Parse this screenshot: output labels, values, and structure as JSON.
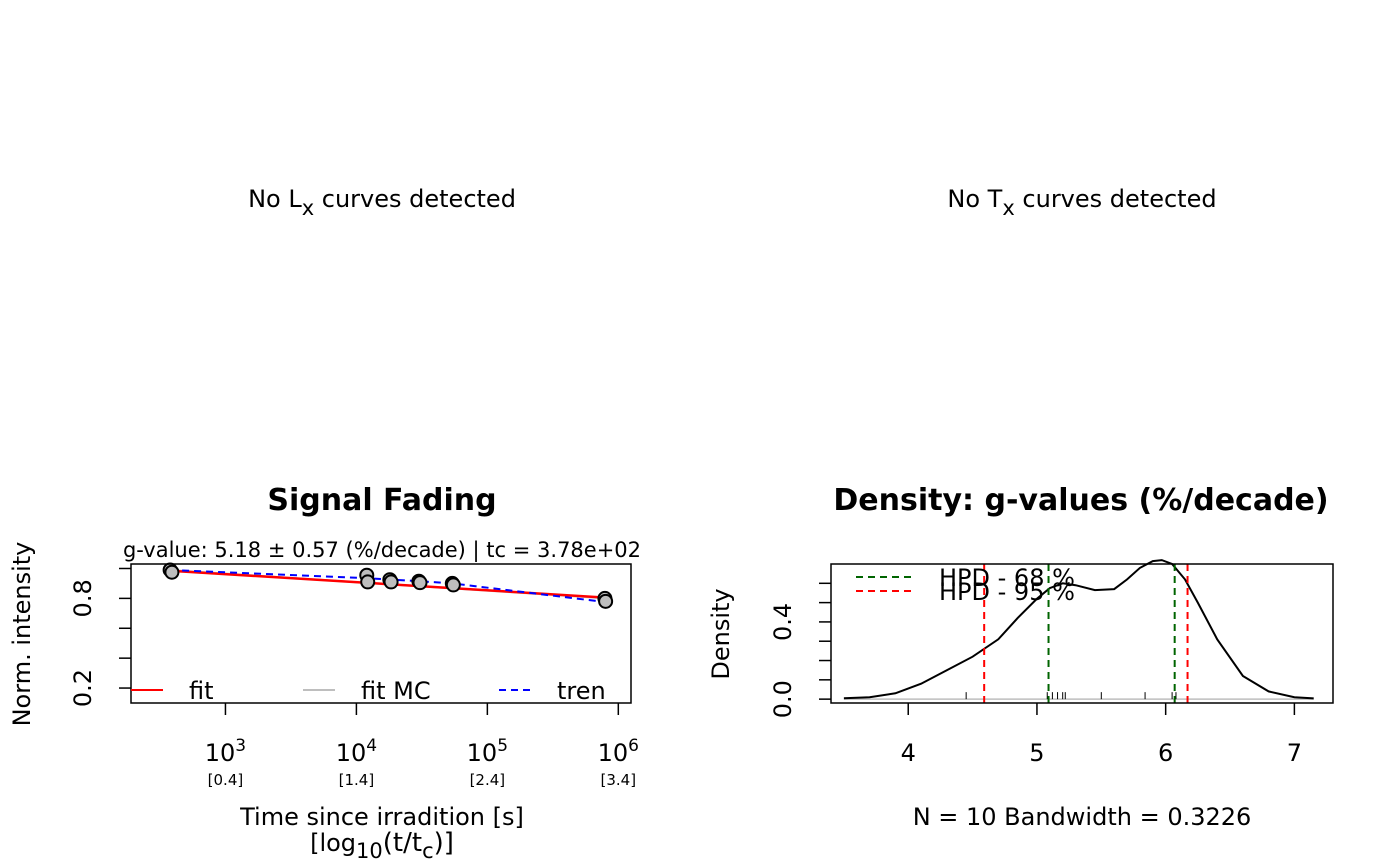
{
  "panels": {
    "lx_message": {
      "prefix": "No L",
      "sub": "x",
      "suffix": " curves detected"
    },
    "tx_message": {
      "prefix": "No T",
      "sub": "x",
      "suffix": " curves detected"
    }
  },
  "chart_data": [
    {
      "type": "scatter",
      "title": "Signal Fading",
      "subtitle": "g-value: 5.18 ± 0.57 (%/decade) | tc = 3.78e+02",
      "xlabel": "Time since irradition [s]",
      "xlabel2": {
        "open": "[log",
        "sub1": "10",
        "mid": "(t/t",
        "sub2": "c",
        "close": ")]"
      },
      "ylabel": "Norm. intensity",
      "x_scale": "log10",
      "xlim": [
        190,
        1250000
      ],
      "ylim": [
        0.1,
        1.03
      ],
      "x_ticks": [
        {
          "x": 1000,
          "base": "10",
          "exp": "3",
          "secondary": "[0.4]"
        },
        {
          "x": 10000,
          "base": "10",
          "exp": "4",
          "secondary": "[1.4]"
        },
        {
          "x": 100000,
          "base": "10",
          "exp": "5",
          "secondary": "[2.4]"
        },
        {
          "x": 1000000,
          "base": "10",
          "exp": "6",
          "secondary": "[3.4]"
        }
      ],
      "y_ticks": [
        0.2,
        0.8
      ],
      "y_minor_ticks": [
        0.2,
        0.4,
        0.6,
        0.8,
        1.0
      ],
      "points": [
        {
          "x": 378,
          "y": 0.99
        },
        {
          "x": 390,
          "y": 0.975
        },
        {
          "x": 12000,
          "y": 0.955
        },
        {
          "x": 12200,
          "y": 0.91
        },
        {
          "x": 18000,
          "y": 0.925
        },
        {
          "x": 18400,
          "y": 0.91
        },
        {
          "x": 30000,
          "y": 0.915
        },
        {
          "x": 30600,
          "y": 0.905
        },
        {
          "x": 54000,
          "y": 0.9
        },
        {
          "x": 55000,
          "y": 0.89
        },
        {
          "x": 790000,
          "y": 0.8
        },
        {
          "x": 800000,
          "y": 0.78
        }
      ],
      "series": [
        {
          "name": "fit",
          "color": "#ff0000",
          "style": "solid",
          "x": [
            378,
            800000
          ],
          "y": [
            0.985,
            0.805
          ]
        },
        {
          "name": "fit MC",
          "color": "#bebebe",
          "style": "solid",
          "x": [
            378,
            800000
          ],
          "y": [
            0.99,
            0.8
          ]
        },
        {
          "name": "tren",
          "color": "#0000ff",
          "style": "dashed",
          "x": [
            378,
            12000,
            30000,
            54000,
            800000
          ],
          "y": [
            0.99,
            0.935,
            0.915,
            0.9,
            0.775
          ]
        }
      ],
      "legend": {
        "placement": "bottom",
        "entries": [
          "fit",
          "fit MC",
          "tren"
        ]
      }
    },
    {
      "type": "line",
      "title": "Density: g-values (%/decade)",
      "xlabel": "N = 10   Bandwidth = 0.3226",
      "ylabel": "Density",
      "xlim": [
        3.4,
        7.3
      ],
      "ylim": [
        -0.02,
        0.7
      ],
      "x_ticks": [
        4,
        5,
        6,
        7
      ],
      "y_ticks": [
        0.0,
        0.4
      ],
      "y_minor_ticks": [
        0.0,
        0.1,
        0.2,
        0.3,
        0.4,
        0.5,
        0.6
      ],
      "density": {
        "x": [
          3.5,
          3.7,
          3.9,
          4.1,
          4.3,
          4.5,
          4.7,
          4.85,
          5.0,
          5.1,
          5.2,
          5.3,
          5.45,
          5.6,
          5.7,
          5.8,
          5.9,
          5.97,
          6.05,
          6.15,
          6.25,
          6.4,
          6.6,
          6.8,
          7.0,
          7.15
        ],
        "y": [
          0.005,
          0.01,
          0.03,
          0.08,
          0.15,
          0.22,
          0.31,
          0.42,
          0.52,
          0.575,
          0.6,
          0.59,
          0.565,
          0.57,
          0.62,
          0.68,
          0.715,
          0.72,
          0.7,
          0.62,
          0.5,
          0.31,
          0.12,
          0.04,
          0.01,
          0.004
        ]
      },
      "rug": [
        4.45,
        5.08,
        5.12,
        5.16,
        5.2,
        5.22,
        5.5,
        5.84,
        6.05,
        6.08
      ],
      "hpd": [
        {
          "name": "HPD - 68 %",
          "color": "#006400",
          "lower": 5.09,
          "upper": 6.07
        },
        {
          "name": "HPD - 95 %",
          "color": "#ff0000",
          "lower": 4.59,
          "upper": 6.17
        }
      ],
      "legend": {
        "placement": "top-left",
        "entries": [
          "HPD - 68 %",
          "HPD - 95 %"
        ]
      }
    }
  ]
}
